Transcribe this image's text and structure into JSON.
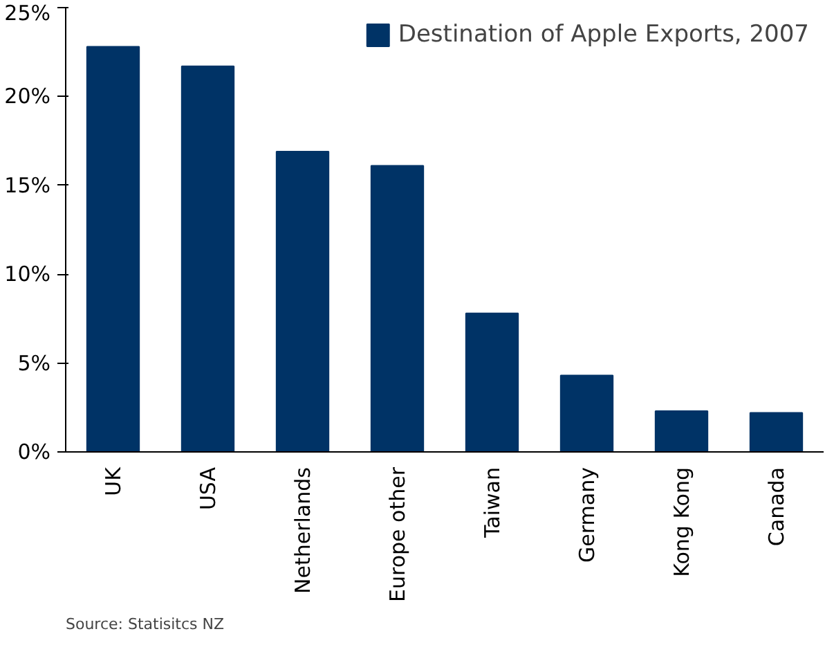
{
  "chart_data": {
    "type": "bar",
    "categories": [
      "UK",
      "USA",
      "Netherlands",
      "Europe other",
      "Taiwan",
      "Germany",
      "Kong Kong",
      "Canada"
    ],
    "series": [
      {
        "name": "Destination of Apple Exports, 2007",
        "color": "#003366",
        "values": [
          22.8,
          21.7,
          16.9,
          16.1,
          7.8,
          4.3,
          2.3,
          2.2
        ]
      }
    ],
    "ylim": [
      0,
      25
    ],
    "yticks": [
      {
        "value": 0,
        "label": "0%"
      },
      {
        "value": 5,
        "label": "5%"
      },
      {
        "value": 10,
        "label": "10%"
      },
      {
        "value": 15,
        "label": "15%"
      },
      {
        "value": 20,
        "label": "20%"
      },
      {
        "value": 25,
        "label": "25%"
      }
    ],
    "grid": false,
    "legend": "top right",
    "annotations": [
      "Source: Statisitcs NZ"
    ]
  }
}
